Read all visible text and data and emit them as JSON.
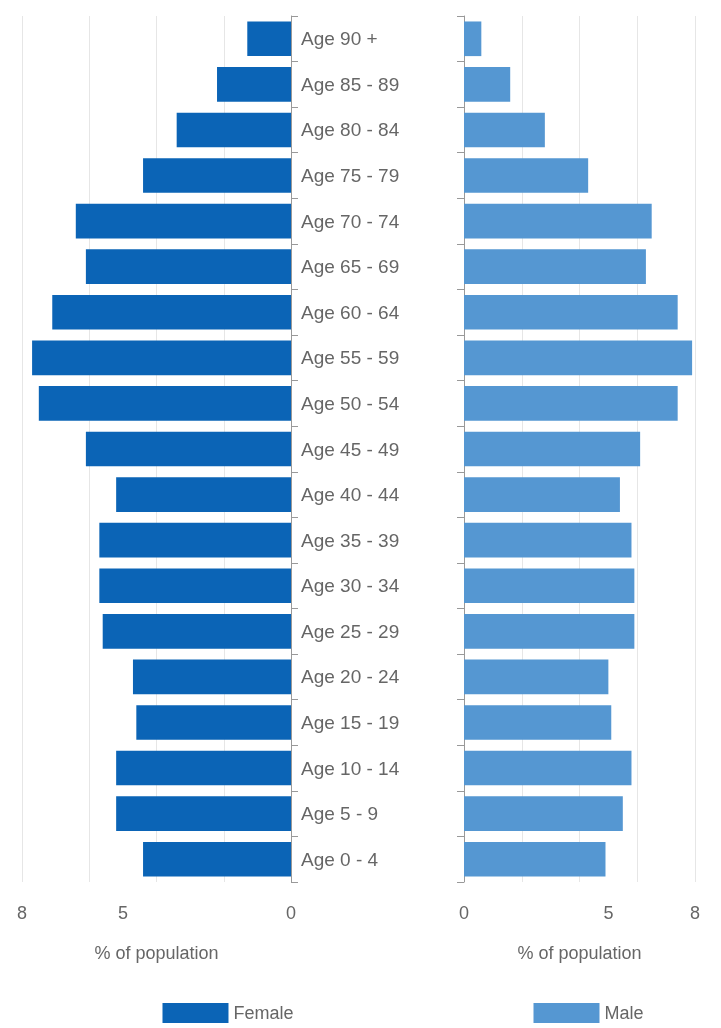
{
  "chart_data": [
    {
      "type": "bar",
      "orientation": "horizontal",
      "categories": [
        "Age 90 +",
        "Age 85 - 89",
        "Age 80 - 84",
        "Age 75 - 79",
        "Age 70 - 74",
        "Age 65 - 69",
        "Age 60 - 64",
        "Age 55 - 59",
        "Age 50 - 54",
        "Age 45 - 49",
        "Age 40 - 44",
        "Age 35 - 39",
        "Age 30 - 34",
        "Age 25 - 29",
        "Age 20 - 24",
        "Age 15 - 19",
        "Age 10 - 14",
        "Age 5 - 9",
        "Age 0 - 4"
      ],
      "series": [
        {
          "name": "Female",
          "color": "#0b64b6",
          "values": [
            1.3,
            2.2,
            3.4,
            4.4,
            6.4,
            6.1,
            7.1,
            7.7,
            7.5,
            6.1,
            5.2,
            5.7,
            5.7,
            5.6,
            4.7,
            4.6,
            5.2,
            5.2,
            4.4
          ]
        }
      ],
      "xlim": [
        8,
        0
      ],
      "xticks": [
        8,
        5,
        0
      ],
      "xlabel": "% of population",
      "grid": "x",
      "legend": "bottom"
    },
    {
      "type": "bar",
      "orientation": "horizontal",
      "categories": [
        null,
        null,
        null,
        null,
        null,
        null,
        null,
        null,
        null,
        null,
        null,
        null,
        null,
        null,
        null,
        null,
        null,
        null,
        null
      ],
      "series": [
        {
          "name": "Male",
          "color": "#5597d2",
          "values": [
            0.6,
            1.6,
            2.8,
            4.3,
            6.5,
            6.3,
            7.4,
            7.9,
            7.4,
            6.1,
            5.4,
            5.8,
            5.9,
            5.9,
            5.0,
            5.1,
            5.8,
            5.5,
            4.9
          ]
        }
      ],
      "xlim": [
        0,
        8
      ],
      "xticks": [
        0,
        5,
        8
      ],
      "xlabel": "% of population",
      "grid": "x",
      "legend": "bottom",
      "tick_labels": "x"
    }
  ]
}
